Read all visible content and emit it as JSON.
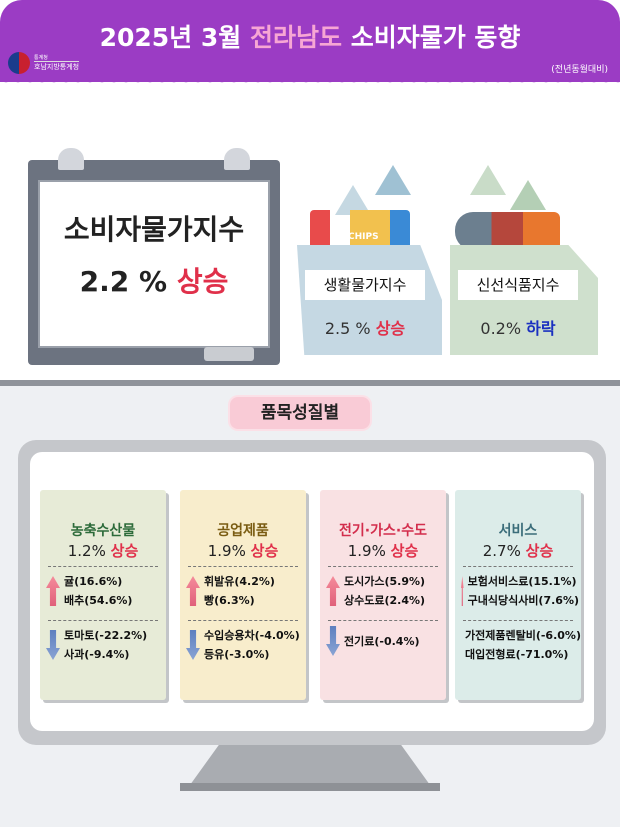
{
  "header": {
    "year_month": "2025년 3월",
    "region": "전라남도",
    "topic": "소비자물가 동향",
    "note": "(전년동월대비)",
    "logo_top": "통계청",
    "logo_bottom": "호남지방통계청"
  },
  "main_index": {
    "label": "소비자물가지수",
    "value": "2.2 %",
    "direction": "상승"
  },
  "living_index": {
    "label": "생활물가지수",
    "value": "2.5 %",
    "direction": "상승",
    "chips_text": "CHIPS"
  },
  "fresh_index": {
    "label": "신선식품지수",
    "value": "0.2%",
    "direction": "하락"
  },
  "section_title": "품목성질별",
  "categories": [
    {
      "name": "농축수산물",
      "value": "1.2%",
      "direction": "상승",
      "up": [
        "귤(16.6%)",
        "배추(54.6%)"
      ],
      "down": [
        "토마토(-22.2%)",
        "사과(-9.4%)"
      ],
      "bg": "#e7ebd7",
      "color": "#2d6b3a"
    },
    {
      "name": "공업제품",
      "value": "1.9%",
      "direction": "상승",
      "up": [
        "휘발유(4.2%)",
        "빵(6.3%)"
      ],
      "down": [
        "수입승용차(-4.0%)",
        "등유(-3.0%)"
      ],
      "bg": "#f8edcc",
      "color": "#7a5c12"
    },
    {
      "name": "전기·가스·수도",
      "value": "1.9%",
      "direction": "상승",
      "up": [
        "도시가스(5.9%)",
        "상수도료(2.4%)"
      ],
      "down": [
        "전기료(-0.4%)"
      ],
      "bg": "#f9e1e3",
      "color": "#d32d4c"
    },
    {
      "name": "서비스",
      "value": "2.7%",
      "direction": "상승",
      "up": [
        "보험서비스료(15.1%)",
        "구내식당식사비(7.6%)"
      ],
      "down": [
        "가전제품렌탈비(-6.0%)",
        "대입전형료(-71.0%)"
      ],
      "bg": "#dcece9",
      "color": "#3b6d7a"
    }
  ]
}
